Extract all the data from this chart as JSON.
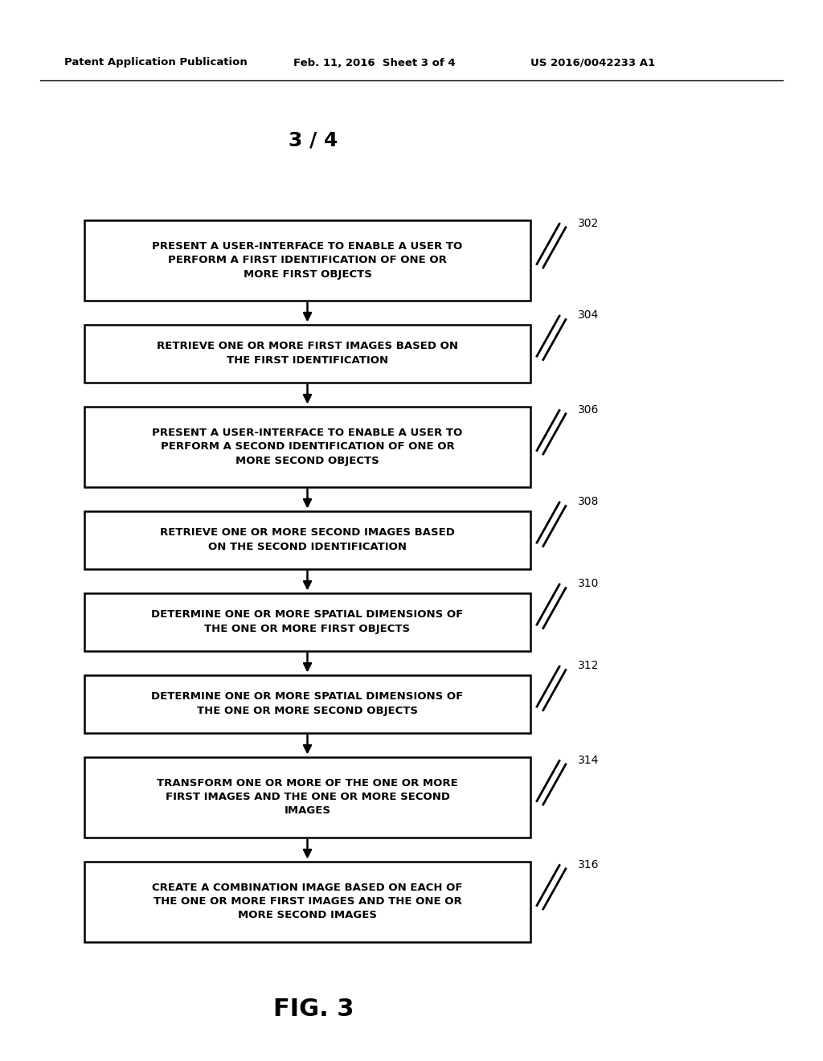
{
  "title": "3 / 4",
  "header_left": "Patent Application Publication",
  "header_mid": "Feb. 11, 2016  Sheet 3 of 4",
  "header_right": "US 2016/0042233 A1",
  "fig_label": "FIG. 3",
  "boxes": [
    {
      "id": "302",
      "lines": [
        "PRESENT A USER-INTERFACE TO ENABLE A USER TO",
        "PERFORM A FIRST IDENTIFICATION OF ONE OR",
        "MORE FIRST OBJECTS"
      ],
      "nlines": 3
    },
    {
      "id": "304",
      "lines": [
        "RETRIEVE ONE OR MORE FIRST IMAGES BASED ON",
        "THE FIRST IDENTIFICATION"
      ],
      "nlines": 2
    },
    {
      "id": "306",
      "lines": [
        "PRESENT A USER-INTERFACE TO ENABLE A USER TO",
        "PERFORM A SECOND IDENTIFICATION OF ONE OR",
        "MORE SECOND OBJECTS"
      ],
      "nlines": 3
    },
    {
      "id": "308",
      "lines": [
        "RETRIEVE ONE OR MORE SECOND IMAGES BASED",
        "ON THE SECOND IDENTIFICATION"
      ],
      "nlines": 2
    },
    {
      "id": "310",
      "lines": [
        "DETERMINE ONE OR MORE SPATIAL DIMENSIONS OF",
        "THE ONE OR MORE FIRST OBJECTS"
      ],
      "nlines": 2
    },
    {
      "id": "312",
      "lines": [
        "DETERMINE ONE OR MORE SPATIAL DIMENSIONS OF",
        "THE ONE OR MORE SECOND OBJECTS"
      ],
      "nlines": 2
    },
    {
      "id": "314",
      "lines": [
        "TRANSFORM ONE OR MORE OF THE ONE OR MORE",
        "FIRST IMAGES AND THE ONE OR MORE SECOND",
        "IMAGES"
      ],
      "nlines": 3
    },
    {
      "id": "316",
      "lines": [
        "CREATE A COMBINATION IMAGE BASED ON EACH OF",
        "THE ONE OR MORE FIRST IMAGES AND THE ONE OR",
        "MORE SECOND IMAGES"
      ],
      "nlines": 3
    }
  ],
  "background_color": "#ffffff",
  "box_edge_color": "#000000",
  "text_color": "#000000",
  "arrow_color": "#000000"
}
